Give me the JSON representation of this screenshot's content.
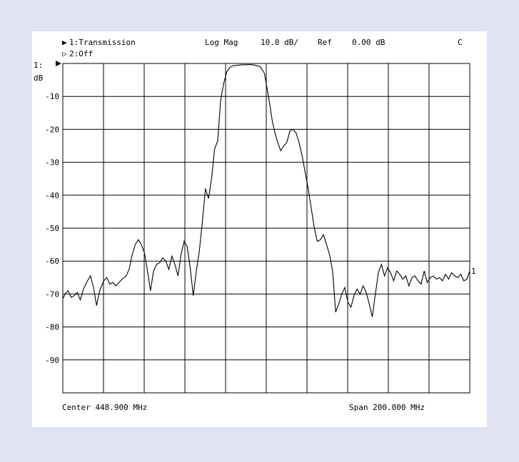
{
  "chart_data": {
    "type": "line",
    "header": {
      "trace1_marker": "▶",
      "trace1": "1:Transmission",
      "trace2_marker": "▷",
      "trace2": "2:Off",
      "format": "Log Mag",
      "scale": "10.0 dB/",
      "ref_label": "Ref",
      "ref_value": "0.00 dB",
      "status": "C"
    },
    "ref_label": "1:",
    "ylabel": "dB",
    "ytick_labels": [
      "-10",
      "-20",
      "-30",
      "-40",
      "-50",
      "-60",
      "-70",
      "-80",
      "-90"
    ],
    "ylim": [
      -100,
      0
    ],
    "xlim": [
      348.9,
      548.9
    ],
    "x_unit": "MHz",
    "footer_left": "Center 448.900 MHz",
    "footer_right": "Span 200.000 MHz",
    "trace_end_label": "1",
    "grid": true,
    "series": [
      {
        "x": [
          348.9,
          350.0,
          351.5,
          353.0,
          354.5,
          356.0,
          357.5,
          359.0,
          361.0,
          362.5,
          364.0,
          365.5,
          367.0,
          369.0,
          370.5,
          372.0,
          373.5,
          375.0,
          376.5,
          378.0,
          380.0,
          381.5,
          383.0,
          384.5,
          386.0,
          387.5,
          389.0,
          390.5,
          392.0,
          393.5,
          395.0,
          396.5,
          398.0,
          399.5,
          401.0,
          402.5,
          404.0,
          405.5,
          407.0,
          408.5,
          410.0,
          411.5,
          413.0,
          414.5,
          416.0,
          417.5,
          419.0,
          420.5,
          422.0,
          423.5,
          425.0,
          426.5,
          428.0,
          429.5,
          431.0,
          432.5,
          434.0,
          435.5,
          437.0,
          438.5,
          440.0,
          442.0,
          444.0,
          446.0,
          448.0,
          450.0,
          452.0,
          454.0,
          456.0,
          457.5,
          459.0,
          460.5,
          462.0,
          463.5,
          465.0,
          466.5,
          468.0,
          469.5,
          471.0,
          472.5,
          474.0,
          475.5,
          477.0,
          478.5,
          480.0,
          481.5,
          483.0,
          484.5,
          486.0,
          487.5,
          489.0,
          490.5,
          492.0,
          493.5,
          495.0,
          496.5,
          498.0,
          499.5,
          501.0,
          502.5,
          504.0,
          505.5,
          507.0,
          508.5,
          510.0,
          511.5,
          513.0,
          514.5,
          516.0,
          517.5,
          519.0,
          520.5,
          522.0,
          523.5,
          525.0,
          526.5,
          528.0,
          529.5,
          531.0,
          532.5,
          534.0,
          535.5,
          537.0,
          538.5,
          540.0,
          541.5,
          543.0,
          544.5,
          546.0,
          547.5,
          548.9
        ],
        "y": [
          -71.5,
          -70.0,
          -69.0,
          -71.0,
          -70.5,
          -69.5,
          -71.8,
          -68.5,
          -66.0,
          -64.5,
          -68.0,
          -73.5,
          -69.0,
          -66.0,
          -65.0,
          -67.0,
          -66.5,
          -67.5,
          -66.5,
          -65.5,
          -64.5,
          -62.5,
          -58.0,
          -55.0,
          -53.5,
          -55.0,
          -57.5,
          -63.0,
          -69.0,
          -63.0,
          -61.0,
          -60.5,
          -59.0,
          -60.0,
          -62.5,
          -58.5,
          -61.0,
          -64.5,
          -58.0,
          -54.0,
          -55.5,
          -62.0,
          -70.5,
          -63.0,
          -57.0,
          -48.0,
          -38.0,
          -41.0,
          -35.0,
          -26.0,
          -23.5,
          -11.0,
          -6.0,
          -2.5,
          -1.2,
          -0.7,
          -0.6,
          -0.5,
          -0.4,
          -0.4,
          -0.3,
          -0.4,
          -0.6,
          -1.0,
          -3.0,
          -10.0,
          -18.0,
          -23.0,
          -26.5,
          -25.0,
          -24.0,
          -20.5,
          -20.0,
          -21.0,
          -24.0,
          -28.0,
          -33.0,
          -38.0,
          -44.0,
          -50.0,
          -54.0,
          -53.5,
          -52.0,
          -55.0,
          -58.0,
          -63.0,
          -75.5,
          -73.0,
          -70.0,
          -68.0,
          -72.5,
          -74.0,
          -70.5,
          -68.5,
          -70.0,
          -67.5,
          -69.5,
          -73.0,
          -77.0,
          -70.0,
          -63.5,
          -61.0,
          -64.5,
          -62.0,
          -63.5,
          -66.0,
          -63.0,
          -64.0,
          -65.5,
          -64.5,
          -67.5,
          -65.0,
          -64.5,
          -66.0,
          -67.0,
          -63.0,
          -66.5,
          -65.0,
          -64.5,
          -65.5,
          -65.0,
          -66.0,
          -64.0,
          -65.5,
          -63.5,
          -64.5,
          -65.0,
          -64.0,
          -66.0,
          -65.5,
          -63.0
        ]
      }
    ]
  }
}
